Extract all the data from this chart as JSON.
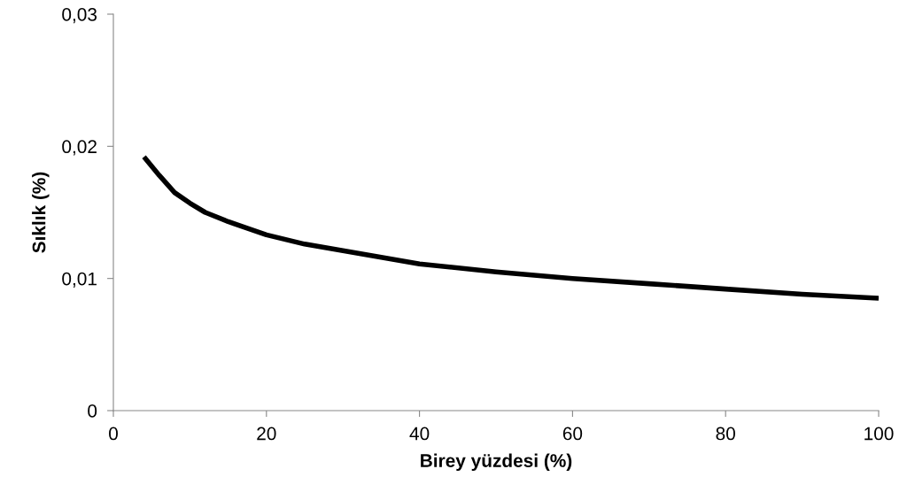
{
  "chart_data": {
    "type": "line",
    "xlabel": "Birey yüzdesi (%)",
    "ylabel": "Sıklık (%)",
    "x": [
      4,
      6,
      8,
      10,
      12,
      15,
      20,
      25,
      30,
      40,
      50,
      60,
      70,
      80,
      90,
      100
    ],
    "series": [
      {
        "color": "#000000",
        "values": [
          0.0192,
          0.0178,
          0.0165,
          0.0157,
          0.015,
          0.0143,
          0.0133,
          0.0126,
          0.0121,
          0.0111,
          0.0105,
          0.01,
          0.0096,
          0.0092,
          0.0088,
          0.0085
        ]
      }
    ],
    "xlim": [
      0,
      100
    ],
    "xticks": [
      0,
      20,
      40,
      60,
      80,
      100
    ],
    "ylim": [
      0,
      0.03
    ],
    "yticks": [
      {
        "value": 0,
        "label": "0"
      },
      {
        "value": 0.01,
        "label": "0,01"
      },
      {
        "value": 0.02,
        "label": "0,02"
      },
      {
        "value": 0.03,
        "label": "0,03"
      }
    ],
    "grid": false,
    "legend": false,
    "marker": "none",
    "line_style": "solid"
  }
}
